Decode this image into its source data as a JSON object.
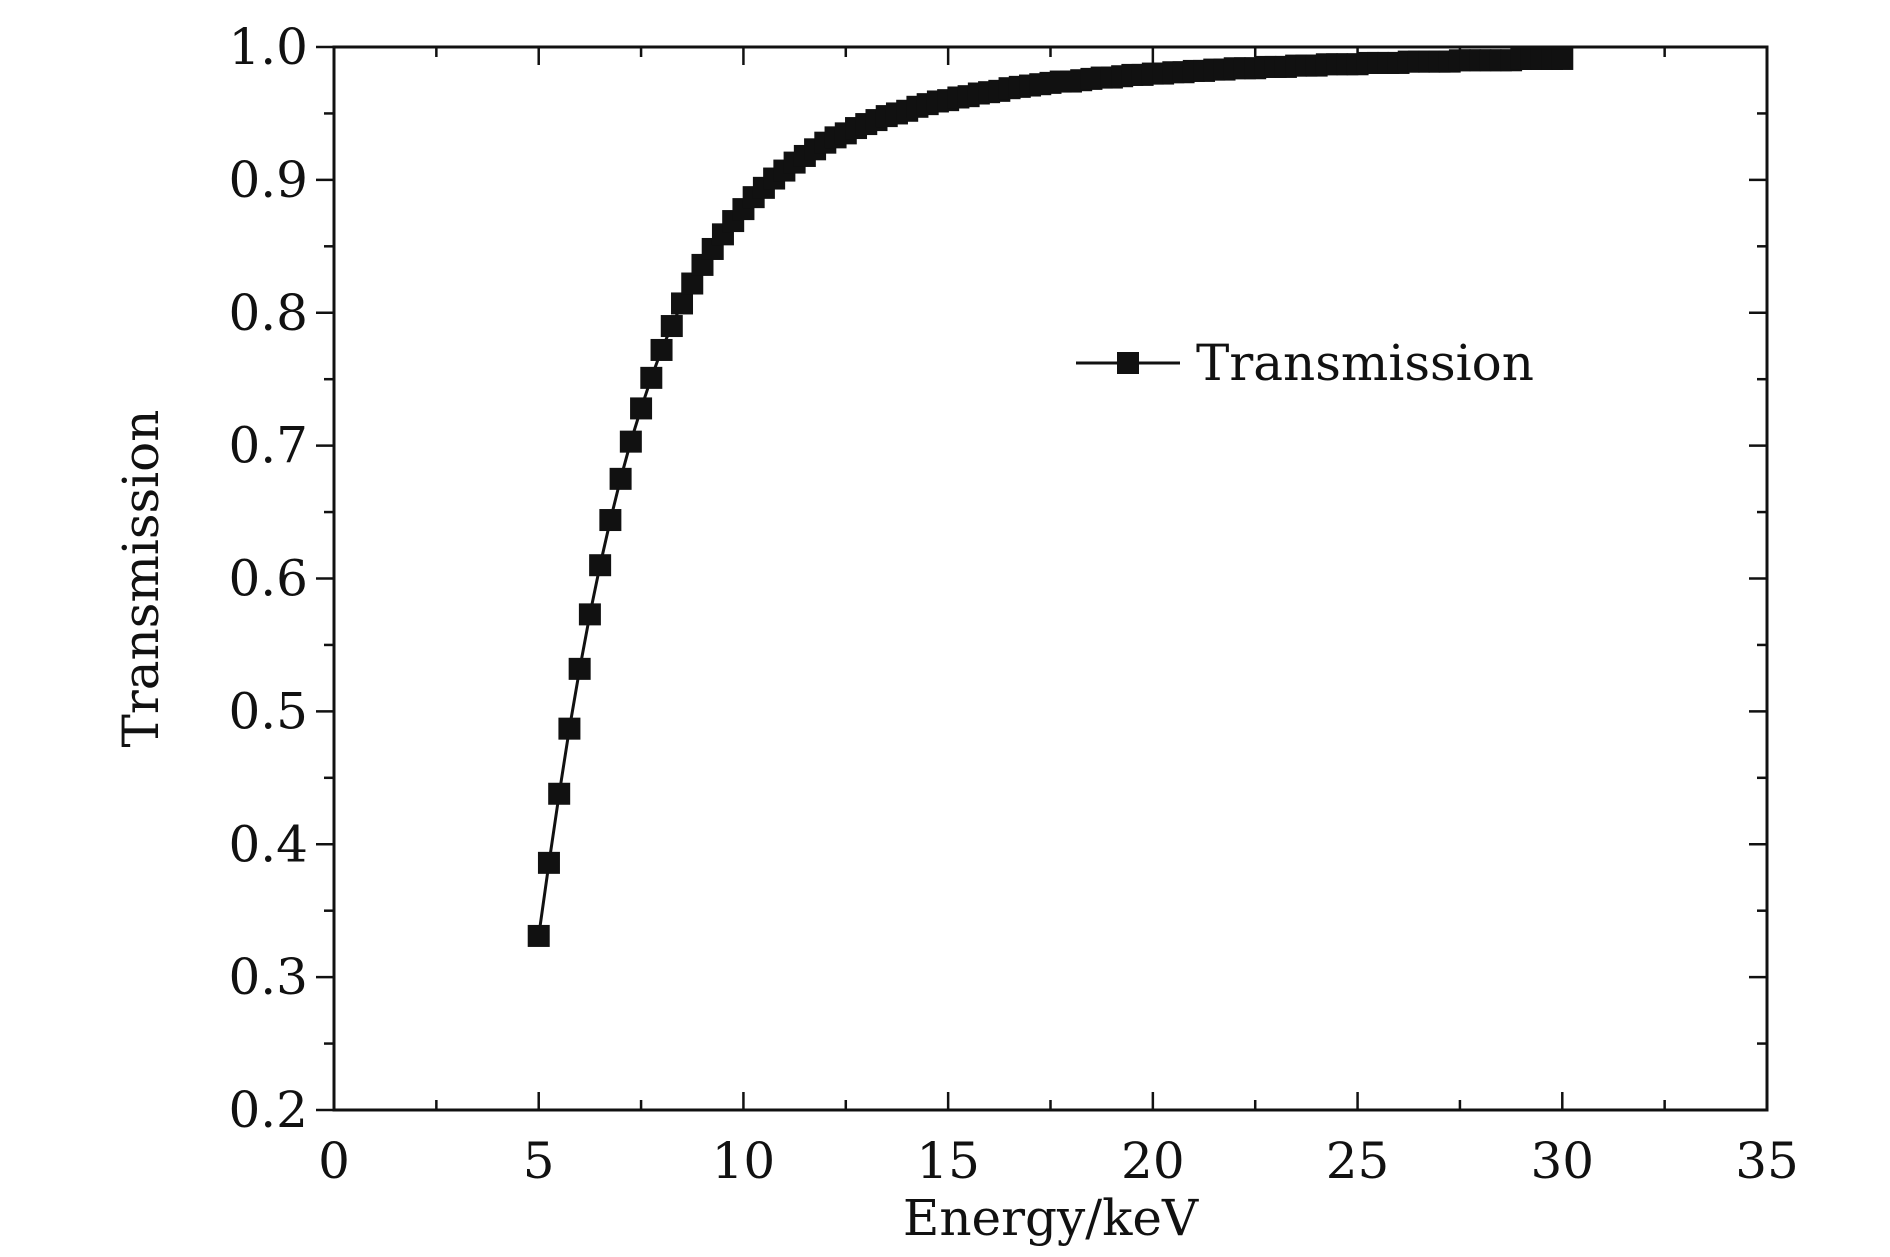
{
  "chart_data": {
    "type": "line",
    "title": "",
    "xlabel": "Energy/keV",
    "ylabel": "Transmission",
    "xlim": [
      0,
      35
    ],
    "ylim": [
      0.2,
      1.0
    ],
    "xticks": [
      0,
      5,
      10,
      15,
      20,
      25,
      30,
      35
    ],
    "xtick_labels": [
      "0",
      "5",
      "10",
      "15",
      "20",
      "25",
      "30",
      "35"
    ],
    "yticks": [
      0.2,
      0.3,
      0.4,
      0.5,
      0.6,
      0.7,
      0.8,
      0.9,
      1.0
    ],
    "ytick_labels": [
      "0.2",
      "0.3",
      "0.4",
      "0.5",
      "0.6",
      "0.7",
      "0.8",
      "0.9",
      "1.0"
    ],
    "grid": false,
    "legend": {
      "position": "center-right",
      "entries": [
        "Transmission"
      ]
    },
    "series": [
      {
        "name": "Transmission",
        "marker": "square",
        "color": "#111111",
        "x": [
          5.0,
          5.25,
          5.5,
          5.75,
          6.0,
          6.25,
          6.5,
          6.75,
          7.0,
          7.25,
          7.5,
          7.75,
          8.0,
          8.25,
          8.5,
          8.75,
          9.0,
          9.25,
          9.5,
          9.75,
          10.0,
          10.25,
          10.5,
          10.75,
          11.0,
          11.25,
          11.5,
          11.75,
          12.0,
          12.25,
          12.5,
          12.75,
          13.0,
          13.25,
          13.5,
          13.75,
          14.0,
          14.25,
          14.5,
          14.75,
          15.0,
          15.25,
          15.5,
          15.75,
          16.0,
          16.25,
          16.5,
          16.75,
          17.0,
          17.25,
          17.5,
          17.75,
          18.0,
          18.25,
          18.5,
          18.75,
          19.0,
          19.25,
          19.5,
          19.75,
          20.0,
          20.25,
          20.5,
          20.75,
          21.0,
          21.25,
          21.5,
          21.75,
          22.0,
          22.25,
          22.5,
          22.75,
          23.0,
          23.25,
          23.5,
          23.75,
          24.0,
          24.25,
          24.5,
          24.75,
          25.0,
          25.25,
          25.5,
          25.75,
          26.0,
          26.25,
          26.5,
          26.75,
          27.0,
          27.25,
          27.5,
          27.75,
          28.0,
          28.25,
          28.5,
          28.75,
          29.0,
          29.25,
          29.5,
          29.75,
          30.0
        ],
        "y": [
          0.331,
          0.386,
          0.438,
          0.487,
          0.532,
          0.573,
          0.61,
          0.644,
          0.675,
          0.703,
          0.728,
          0.751,
          0.772,
          0.79,
          0.807,
          0.822,
          0.836,
          0.848,
          0.859,
          0.869,
          0.878,
          0.887,
          0.894,
          0.901,
          0.907,
          0.913,
          0.918,
          0.923,
          0.928,
          0.932,
          0.935,
          0.939,
          0.942,
          0.945,
          0.948,
          0.95,
          0.952,
          0.955,
          0.957,
          0.959,
          0.96,
          0.962,
          0.963,
          0.965,
          0.966,
          0.967,
          0.969,
          0.97,
          0.971,
          0.972,
          0.973,
          0.974,
          0.974,
          0.975,
          0.976,
          0.977,
          0.977,
          0.978,
          0.979,
          0.979,
          0.98,
          0.98,
          0.981,
          0.981,
          0.982,
          0.982,
          0.983,
          0.983,
          0.984,
          0.984,
          0.984,
          0.985,
          0.985,
          0.985,
          0.986,
          0.986,
          0.986,
          0.987,
          0.987,
          0.987,
          0.987,
          0.988,
          0.988,
          0.988,
          0.988,
          0.989,
          0.989,
          0.989,
          0.989,
          0.989,
          0.99,
          0.99,
          0.99,
          0.99,
          0.99,
          0.99,
          0.991,
          0.991,
          0.991,
          0.991,
          0.991
        ]
      }
    ]
  }
}
